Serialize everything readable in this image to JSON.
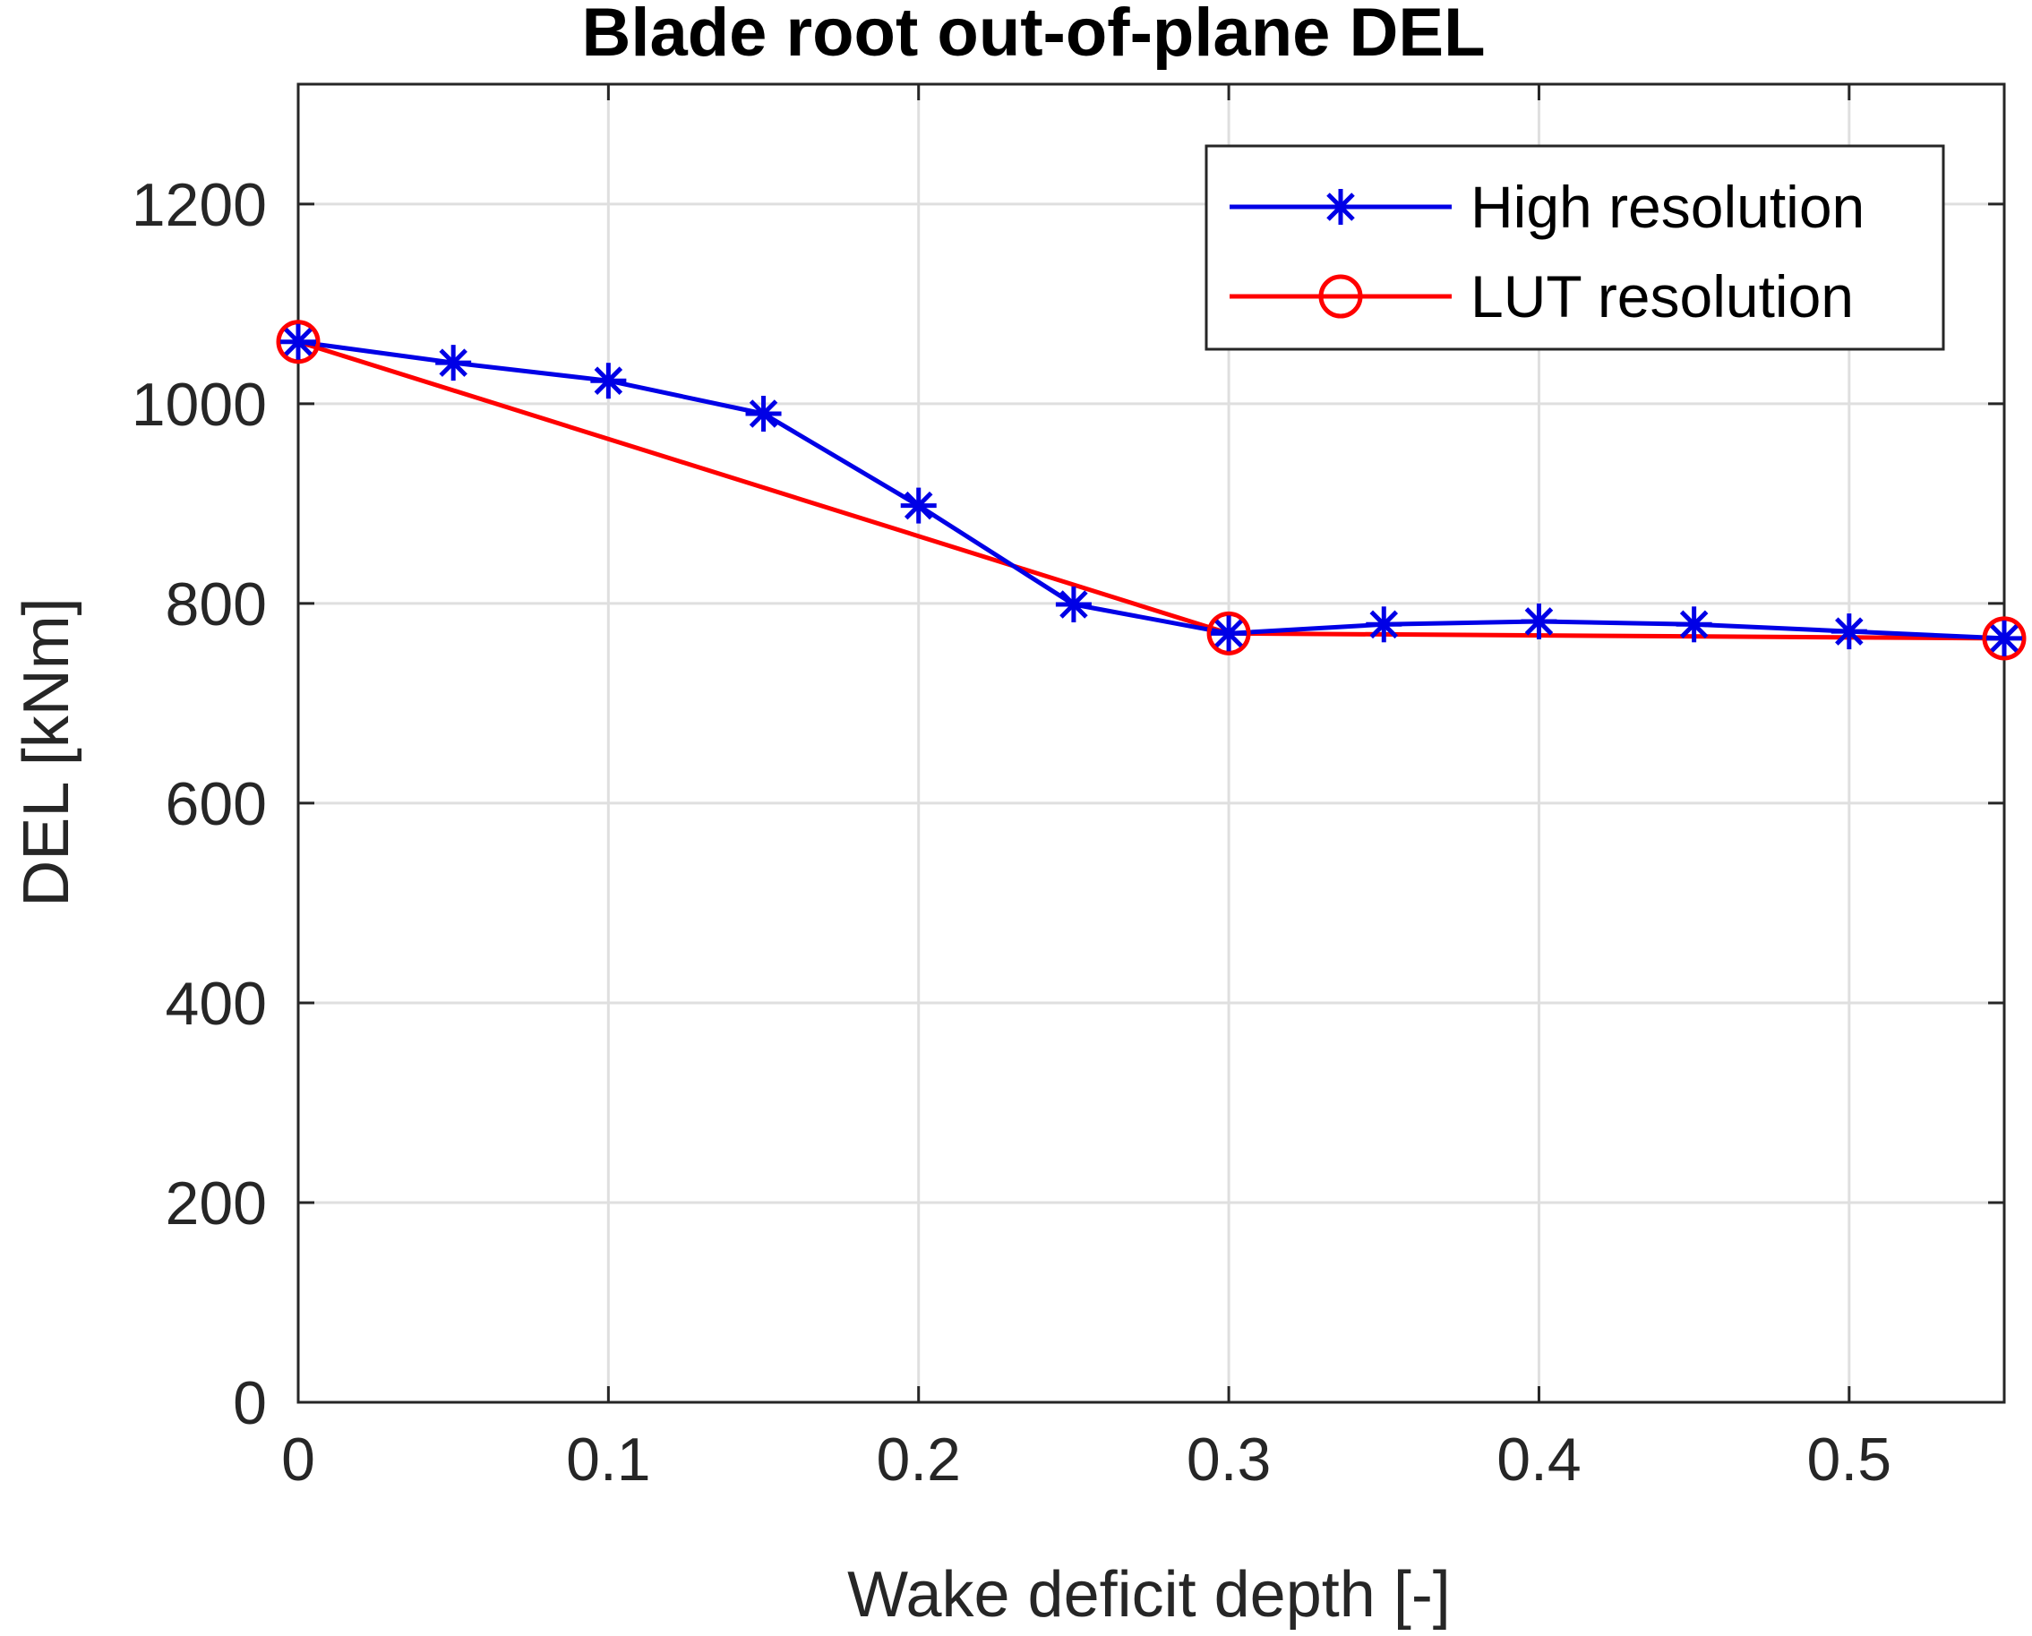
{
  "chart_data": {
    "type": "line",
    "title": "Blade root out-of-plane DEL",
    "xlabel": "Wake deficit depth [-]",
    "ylabel": "DEL [kNm]",
    "xlim": [
      0,
      0.55
    ],
    "ylim": [
      0,
      1320
    ],
    "xticks": [
      0,
      0.1,
      0.2,
      0.3,
      0.4,
      0.5
    ],
    "xtick_labels": [
      "0",
      "0.1",
      "0.2",
      "0.3",
      "0.4",
      "0.5"
    ],
    "yticks": [
      0,
      200,
      400,
      600,
      800,
      1000,
      1200
    ],
    "ytick_labels": [
      "0",
      "200",
      "400",
      "600",
      "800",
      "1000",
      "1200"
    ],
    "grid": true,
    "legend_position": "top-right",
    "series": [
      {
        "name": "High resolution",
        "color": "#0000e6",
        "marker": "asterisk",
        "x": [
          0,
          0.05,
          0.1,
          0.15,
          0.2,
          0.25,
          0.3,
          0.35,
          0.4,
          0.45,
          0.5,
          0.55
        ],
        "y": [
          1062,
          1041,
          1023,
          990,
          898,
          799,
          770,
          779,
          782,
          779,
          772,
          765
        ]
      },
      {
        "name": "LUT resolution",
        "color": "#ff0000",
        "marker": "circle",
        "x": [
          0,
          0.3,
          0.55
        ],
        "y": [
          1062,
          770,
          765
        ]
      }
    ]
  }
}
